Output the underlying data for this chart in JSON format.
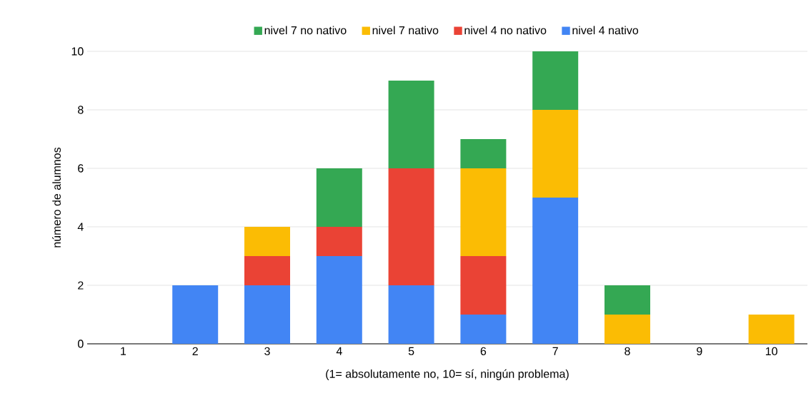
{
  "chart_data": {
    "type": "bar",
    "stacked": true,
    "xlabel": "(1= absolutamente no, 10= sí, ningún problema)",
    "ylabel": "número de alumnos",
    "categories": [
      "1",
      "2",
      "3",
      "4",
      "5",
      "6",
      "7",
      "8",
      "9",
      "10"
    ],
    "series": [
      {
        "name": "nivel 4 nativo",
        "color": "#4285f4",
        "values": [
          0,
          2,
          2,
          3,
          2,
          1,
          5,
          0,
          0,
          0
        ]
      },
      {
        "name": "nivel 4 no nativo",
        "color": "#ea4335",
        "values": [
          0,
          0,
          1,
          1,
          4,
          2,
          0,
          0,
          0,
          0
        ]
      },
      {
        "name": "nivel 7 nativo",
        "color": "#fbbc04",
        "values": [
          0,
          0,
          1,
          0,
          0,
          3,
          3,
          1,
          0,
          1
        ]
      },
      {
        "name": "nivel 7 no nativo",
        "color": "#34a853",
        "values": [
          0,
          0,
          0,
          2,
          3,
          1,
          2,
          1,
          0,
          0
        ]
      }
    ],
    "ylim": [
      0,
      10
    ],
    "yticks": [
      0,
      2,
      4,
      6,
      8,
      10
    ],
    "grid": "y",
    "legend": "top"
  }
}
